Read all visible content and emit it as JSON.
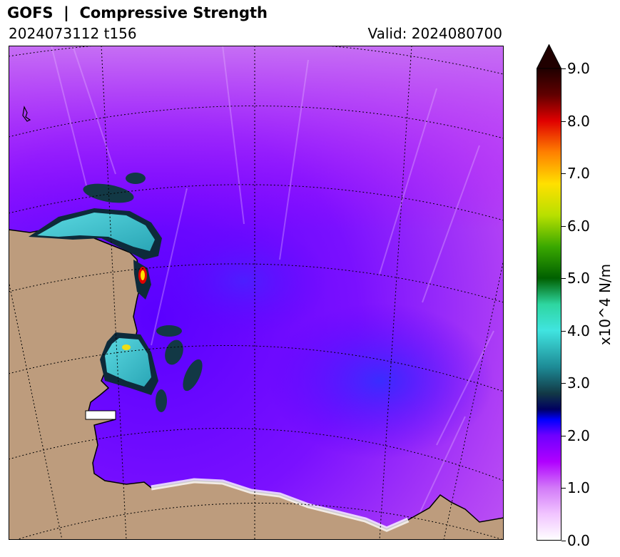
{
  "header": {
    "title": "GOFS  |  Compressive Strength",
    "run": "2024073112 t156",
    "valid": "Valid: 2024080700"
  },
  "map": {
    "field": "compressive strength",
    "colors": {
      "land": "#bd9c7d",
      "ice_low": "#b545f3",
      "ice_mid": "#6b00ff",
      "ice_high": "#3b9fd3",
      "coast": "#000000"
    }
  },
  "colorbar": {
    "label": "x10^4 N/m",
    "ticks": [
      "0.0",
      "1.0",
      "2.0",
      "3.0",
      "4.0",
      "5.0",
      "6.0",
      "7.0",
      "8.0",
      "9.0"
    ],
    "min": 0,
    "max": 9,
    "extend": "max",
    "stops": [
      {
        "v": 0.0,
        "c": "#ffffff"
      },
      {
        "v": 0.5,
        "c": "#f1c4ff"
      },
      {
        "v": 1.0,
        "c": "#d27af8"
      },
      {
        "v": 1.5,
        "c": "#b000ff"
      },
      {
        "v": 2.0,
        "c": "#6e00ff"
      },
      {
        "v": 2.3,
        "c": "#0000ff"
      },
      {
        "v": 2.5,
        "c": "#000060"
      },
      {
        "v": 2.8,
        "c": "#123845"
      },
      {
        "v": 3.3,
        "c": "#1d8a95"
      },
      {
        "v": 4.0,
        "c": "#40e4e0"
      },
      {
        "v": 4.5,
        "c": "#2ed6a0"
      },
      {
        "v": 5.0,
        "c": "#006000"
      },
      {
        "v": 5.6,
        "c": "#3aa800"
      },
      {
        "v": 6.2,
        "c": "#b8e000"
      },
      {
        "v": 6.8,
        "c": "#ffe000"
      },
      {
        "v": 7.4,
        "c": "#ff8000"
      },
      {
        "v": 8.0,
        "c": "#e00000"
      },
      {
        "v": 8.5,
        "c": "#600000"
      },
      {
        "v": 9.0,
        "c": "#200000"
      }
    ]
  }
}
